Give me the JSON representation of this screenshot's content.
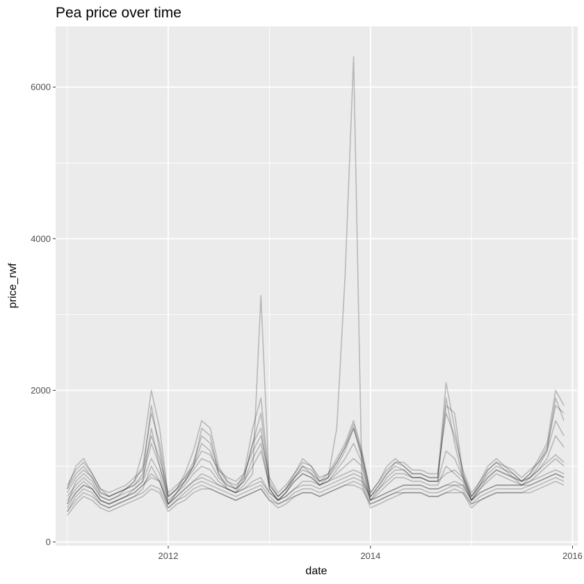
{
  "chart_data": {
    "type": "line",
    "title": "Pea price over time",
    "xlabel": "date",
    "ylabel": "price_rwf",
    "x_axis": {
      "kind": "date",
      "range": [
        "2010-11-20",
        "2016-01-20"
      ],
      "ticks": [
        {
          "label": "2012",
          "value": "2012-01-01"
        },
        {
          "label": "2014",
          "value": "2014-01-01"
        },
        {
          "label": "2016",
          "value": "2016-01-01"
        }
      ],
      "minor_ticks": [
        "2011-01-01",
        "2013-01-01",
        "2015-01-01"
      ]
    },
    "y_axis": {
      "range": [
        -50,
        6800
      ],
      "ticks": [
        {
          "label": "0",
          "value": 0
        },
        {
          "label": "2000",
          "value": 2000
        },
        {
          "label": "4000",
          "value": 4000
        },
        {
          "label": "6000",
          "value": 6000
        }
      ],
      "minor_ticks": [
        1000,
        3000,
        5000
      ]
    },
    "grid": true,
    "legend": "none",
    "line_color": "#000000",
    "line_opacity": 0.22,
    "background": "#ebebeb",
    "dates": [
      "2011-01-01",
      "2011-02-01",
      "2011-03-01",
      "2011-04-01",
      "2011-05-01",
      "2011-06-01",
      "2011-07-01",
      "2011-08-01",
      "2011-09-01",
      "2011-10-01",
      "2011-11-01",
      "2011-12-01",
      "2012-01-01",
      "2012-02-01",
      "2012-03-01",
      "2012-04-01",
      "2012-05-01",
      "2012-06-01",
      "2012-07-01",
      "2012-08-01",
      "2012-09-01",
      "2012-10-01",
      "2012-11-01",
      "2012-12-01",
      "2013-01-01",
      "2013-02-01",
      "2013-03-01",
      "2013-04-01",
      "2013-05-01",
      "2013-06-01",
      "2013-07-01",
      "2013-08-01",
      "2013-09-01",
      "2013-10-01",
      "2013-11-01",
      "2013-12-01",
      "2014-01-01",
      "2014-02-01",
      "2014-03-01",
      "2014-04-01",
      "2014-05-01",
      "2014-06-01",
      "2014-07-01",
      "2014-08-01",
      "2014-09-01",
      "2014-10-01",
      "2014-11-01",
      "2014-12-01",
      "2015-01-01",
      "2015-02-01",
      "2015-03-01",
      "2015-04-01",
      "2015-05-01",
      "2015-06-01",
      "2015-07-01",
      "2015-08-01",
      "2015-09-01",
      "2015-10-01",
      "2015-11-01",
      "2015-12-01"
    ],
    "series": [
      {
        "values": [
          700,
          1000,
          1100,
          900,
          700,
          600,
          650,
          700,
          800,
          1200,
          2000,
          1500,
          600,
          700,
          900,
          1200,
          1600,
          1500,
          1000,
          800,
          700,
          900,
          1500,
          1900,
          800,
          600,
          700,
          900,
          1100,
          1000,
          800,
          900,
          1100,
          1300,
          1600,
          1200,
          650,
          800,
          1000,
          1100,
          1000,
          900,
          900,
          850,
          850,
          2100,
          1500,
          900,
          600,
          800,
          1000,
          1100,
          1000,
          900,
          800,
          900,
          1100,
          1300,
          2000,
          1800
        ]
      },
      {
        "values": [
          500,
          800,
          900,
          800,
          600,
          550,
          600,
          700,
          750,
          900,
          1800,
          1200,
          500,
          650,
          800,
          1000,
          1500,
          1400,
          900,
          700,
          650,
          850,
          1300,
          1500,
          700,
          550,
          650,
          850,
          1000,
          900,
          750,
          850,
          1000,
          1200,
          1500,
          1100,
          600,
          750,
          900,
          1000,
          950,
          850,
          850,
          800,
          800,
          1900,
          1300,
          850,
          550,
          750,
          950,
          1050,
          950,
          850,
          750,
          850,
          1000,
          1200,
          1900,
          1600
        ]
      },
      {
        "values": [
          400,
          600,
          700,
          650,
          500,
          450,
          500,
          550,
          600,
          700,
          1000,
          800,
          450,
          550,
          650,
          750,
          800,
          750,
          700,
          650,
          600,
          650,
          700,
          750,
          600,
          500,
          550,
          650,
          700,
          700,
          650,
          700,
          750,
          800,
          850,
          800,
          500,
          550,
          600,
          650,
          700,
          700,
          700,
          650,
          650,
          700,
          750,
          700,
          500,
          600,
          650,
          700,
          700,
          700,
          700,
          750,
          800,
          850,
          900,
          850
        ]
      },
      {
        "values": [
          350,
          500,
          600,
          550,
          450,
          400,
          450,
          500,
          550,
          600,
          700,
          650,
          400,
          500,
          550,
          650,
          700,
          700,
          650,
          600,
          550,
          600,
          650,
          700,
          550,
          450,
          500,
          600,
          650,
          650,
          600,
          650,
          700,
          750,
          800,
          750,
          450,
          500,
          550,
          600,
          650,
          650,
          650,
          600,
          600,
          650,
          700,
          650,
          450,
          550,
          600,
          650,
          650,
          650,
          650,
          700,
          750,
          800,
          850,
          800
        ]
      },
      {
        "values": [
          600,
          750,
          850,
          750,
          600,
          550,
          600,
          650,
          700,
          800,
          1500,
          1000,
          550,
          650,
          750,
          900,
          1000,
          950,
          800,
          700,
          650,
          750,
          900,
          3250,
          700,
          550,
          650,
          800,
          900,
          850,
          750,
          800,
          900,
          1000,
          1100,
          1000,
          550,
          650,
          750,
          850,
          850,
          800,
          800,
          750,
          750,
          1000,
          900,
          800,
          550,
          700,
          800,
          900,
          850,
          800,
          750,
          800,
          900,
          1000,
          1100,
          1000
        ]
      },
      {
        "values": [
          700,
          900,
          1000,
          850,
          650,
          600,
          650,
          700,
          750,
          850,
          1300,
          1000,
          600,
          700,
          800,
          950,
          1100,
          1050,
          850,
          750,
          700,
          800,
          1000,
          1200,
          750,
          600,
          700,
          850,
          950,
          900,
          800,
          850,
          1500,
          3500,
          6400,
          800,
          600,
          700,
          800,
          900,
          900,
          850,
          850,
          800,
          800,
          900,
          950,
          850,
          600,
          750,
          850,
          950,
          900,
          850,
          800,
          850,
          950,
          1050,
          1150,
          1050
        ]
      },
      {
        "values": [
          450,
          650,
          750,
          700,
          550,
          500,
          550,
          600,
          650,
          750,
          900,
          800,
          500,
          600,
          700,
          800,
          900,
          850,
          750,
          700,
          650,
          700,
          800,
          850,
          650,
          550,
          600,
          700,
          800,
          800,
          750,
          800,
          850,
          900,
          950,
          900,
          550,
          600,
          650,
          700,
          750,
          750,
          750,
          700,
          700,
          750,
          800,
          750,
          550,
          650,
          700,
          750,
          750,
          750,
          750,
          800,
          850,
          900,
          950,
          900
        ]
      },
      {
        "values": [
          550,
          700,
          800,
          700,
          550,
          500,
          550,
          600,
          700,
          800,
          1100,
          900,
          500,
          650,
          800,
          1000,
          1300,
          1200,
          900,
          750,
          700,
          800,
          1100,
          1300,
          700,
          550,
          650,
          800,
          900,
          850,
          750,
          800,
          950,
          1100,
          1300,
          1050,
          550,
          700,
          850,
          950,
          950,
          850,
          850,
          800,
          800,
          1200,
          1100,
          850,
          550,
          700,
          850,
          950,
          900,
          850,
          800,
          850,
          950,
          1100,
          1400,
          1250
        ]
      },
      {
        "values": [
          750,
          950,
          1050,
          900,
          700,
          650,
          700,
          750,
          850,
          950,
          1400,
          1100,
          650,
          750,
          850,
          1000,
          1200,
          1150,
          950,
          850,
          800,
          900,
          1200,
          1400,
          850,
          650,
          750,
          900,
          1050,
          1000,
          850,
          900,
          1050,
          1250,
          1500,
          1150,
          650,
          800,
          950,
          1050,
          1050,
          950,
          950,
          900,
          900,
          1700,
          1400,
          950,
          650,
          800,
          950,
          1050,
          1000,
          950,
          850,
          950,
          1050,
          1200,
          1600,
          1400
        ]
      },
      {
        "values": [
          400,
          550,
          650,
          600,
          500,
          450,
          500,
          550,
          600,
          650,
          750,
          700,
          450,
          550,
          600,
          700,
          750,
          700,
          650,
          600,
          550,
          600,
          650,
          700,
          550,
          500,
          550,
          600,
          650,
          650,
          600,
          650,
          700,
          750,
          750,
          700,
          500,
          550,
          600,
          650,
          650,
          650,
          650,
          600,
          600,
          650,
          650,
          650,
          500,
          550,
          600,
          650,
          650,
          650,
          650,
          650,
          700,
          750,
          800,
          750
        ]
      },
      {
        "values": [
          650,
          850,
          950,
          850,
          650,
          600,
          650,
          700,
          800,
          1000,
          1700,
          1300,
          600,
          700,
          850,
          1050,
          1400,
          1300,
          950,
          800,
          750,
          850,
          1300,
          1700,
          750,
          600,
          700,
          850,
          1000,
          950,
          800,
          850,
          1050,
          1250,
          1550,
          1150,
          600,
          750,
          900,
          1050,
          1000,
          900,
          900,
          850,
          850,
          1800,
          1700,
          900,
          600,
          750,
          900,
          1000,
          950,
          900,
          800,
          900,
          1050,
          1250,
          1800,
          1700
        ]
      },
      {
        "values": [
          500,
          650,
          750,
          700,
          550,
          500,
          550,
          600,
          650,
          750,
          850,
          800,
          500,
          600,
          700,
          800,
          850,
          800,
          750,
          700,
          650,
          700,
          750,
          800,
          650,
          550,
          600,
          700,
          750,
          750,
          700,
          750,
          800,
          850,
          900,
          850,
          550,
          600,
          650,
          700,
          750,
          750,
          750,
          700,
          700,
          750,
          750,
          750,
          550,
          650,
          700,
          750,
          750,
          750,
          750,
          750,
          800,
          850,
          900,
          850
        ]
      }
    ]
  }
}
